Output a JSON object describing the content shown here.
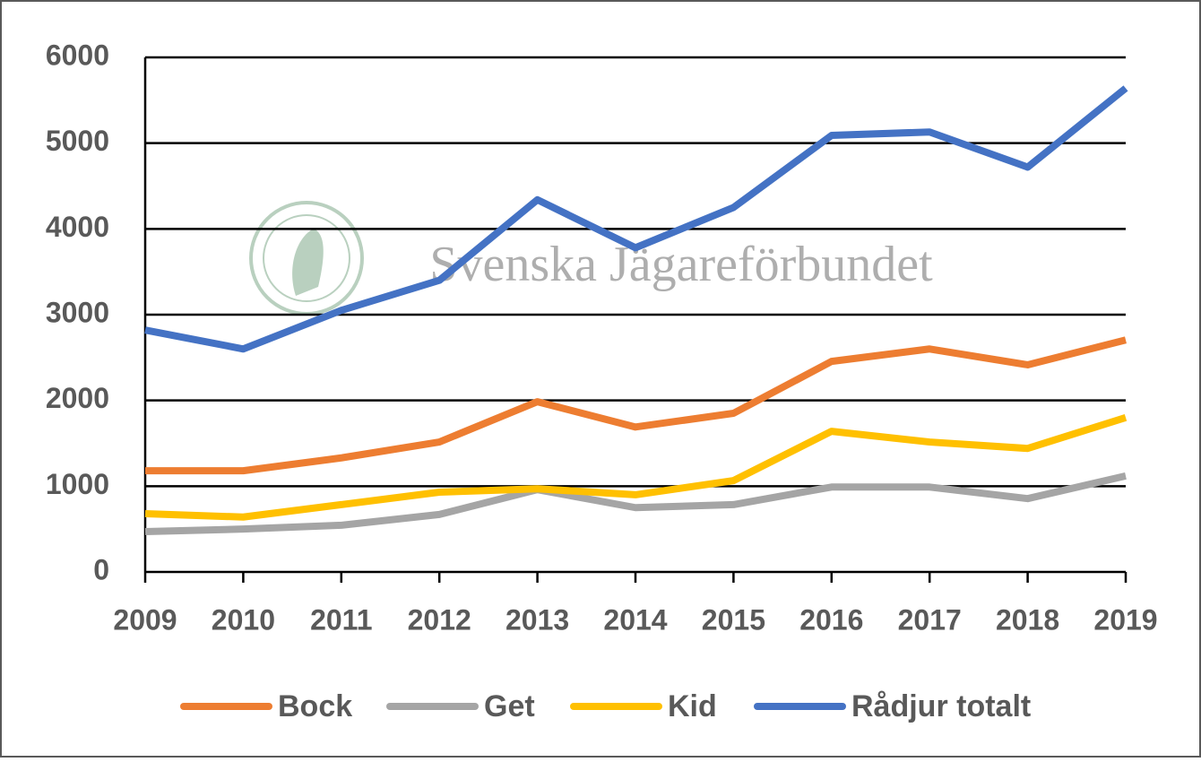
{
  "chart_data": {
    "type": "line",
    "watermark": "Svenska Jägareförbundet",
    "categories": [
      "2009",
      "2010",
      "2011",
      "2012",
      "2013",
      "2014",
      "2015",
      "2016",
      "2017",
      "2018",
      "2019"
    ],
    "series": [
      {
        "name": "Bock",
        "color": "#ED7D31",
        "values": [
          1180,
          1180,
          1330,
          1515,
          1985,
          1690,
          1850,
          2455,
          2600,
          2415,
          2705
        ]
      },
      {
        "name": "Get",
        "color": "#A5A5A5",
        "values": [
          470,
          500,
          545,
          670,
          960,
          750,
          785,
          990,
          990,
          855,
          1120
        ]
      },
      {
        "name": "Kid",
        "color": "#FFC000",
        "values": [
          680,
          640,
          785,
          930,
          970,
          900,
          1065,
          1640,
          1515,
          1440,
          1800
        ]
      },
      {
        "name": "Rådjur totalt",
        "color": "#4472C4",
        "values": [
          2820,
          2600,
          3050,
          3400,
          4340,
          3780,
          4250,
          5090,
          5130,
          4720,
          5640
        ]
      }
    ],
    "ylim": [
      0,
      6000
    ],
    "yticks": [
      0,
      1000,
      2000,
      3000,
      4000,
      5000,
      6000
    ],
    "grid": true,
    "legend": "bottom"
  }
}
